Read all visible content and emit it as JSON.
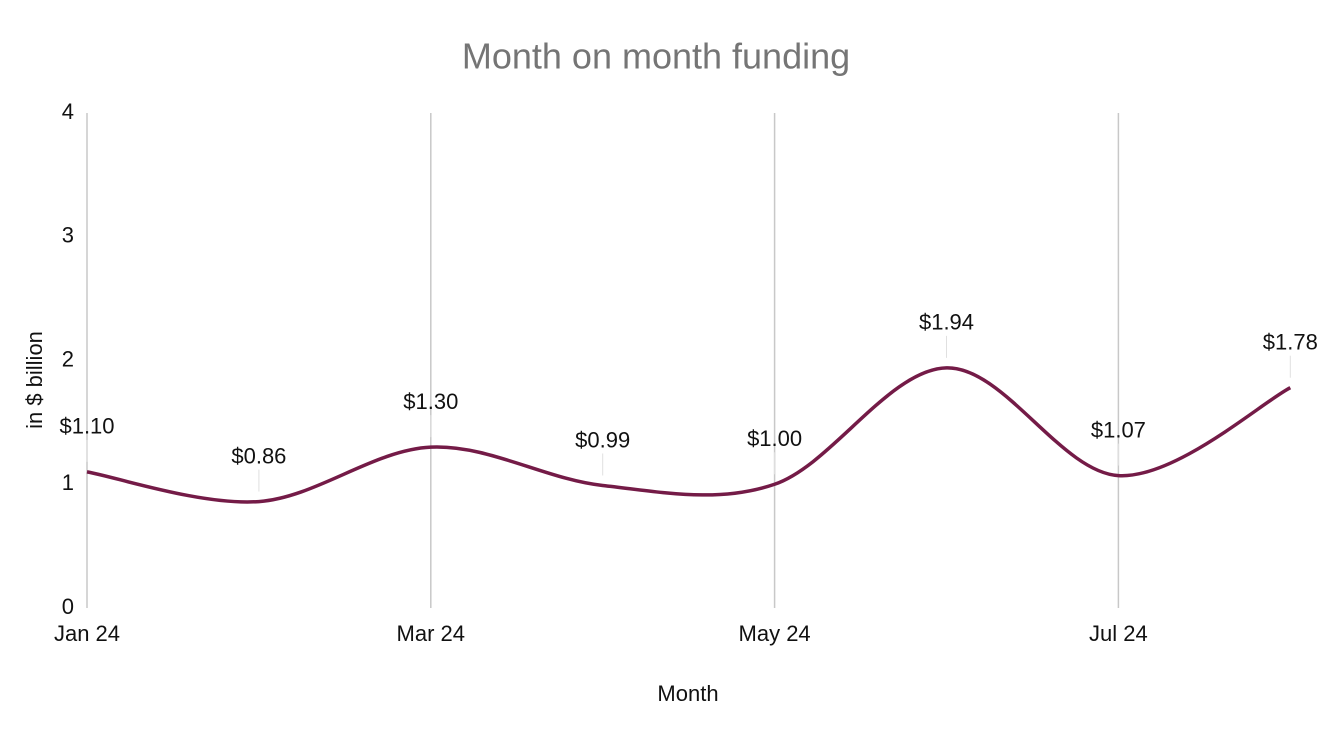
{
  "chart_data": {
    "type": "line",
    "title": "Month on month funding",
    "x_label": "Month",
    "y_label": "in $ billion",
    "categories": [
      "Jan 24",
      null,
      "Mar 24",
      null,
      "May 24",
      null,
      "Jul 24",
      null
    ],
    "series": [
      {
        "name": "Funding",
        "color": "#741b47",
        "values": [
          1.1,
          0.86,
          1.3,
          0.99,
          1.0,
          1.94,
          1.07,
          1.78
        ],
        "value_labels": [
          "$1.10",
          "$0.86",
          "$1.30",
          "$0.99",
          "$1.00",
          "$1.94",
          "$1.07",
          "$1.78"
        ]
      }
    ],
    "ylim": [
      0,
      4
    ],
    "yticks": [
      0,
      1,
      2,
      3,
      4
    ],
    "smooth": true
  }
}
